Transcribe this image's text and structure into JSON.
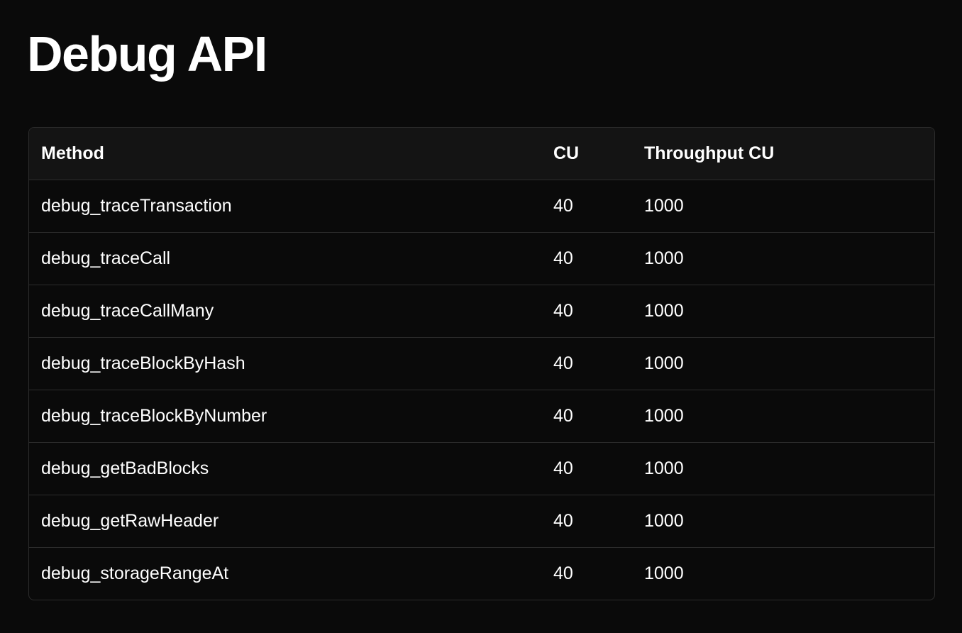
{
  "title": "Debug API",
  "table": {
    "headers": [
      "Method",
      "CU",
      "Throughput CU"
    ],
    "rows": [
      [
        "debug_traceTransaction",
        "40",
        "1000"
      ],
      [
        "debug_traceCall",
        "40",
        "1000"
      ],
      [
        "debug_traceCallMany",
        "40",
        "1000"
      ],
      [
        "debug_traceBlockByHash",
        "40",
        "1000"
      ],
      [
        "debug_traceBlockByNumber",
        "40",
        "1000"
      ],
      [
        "debug_getBadBlocks",
        "40",
        "1000"
      ],
      [
        "debug_getRawHeader",
        "40",
        "1000"
      ],
      [
        "debug_storageRangeAt",
        "40",
        "1000"
      ]
    ]
  }
}
